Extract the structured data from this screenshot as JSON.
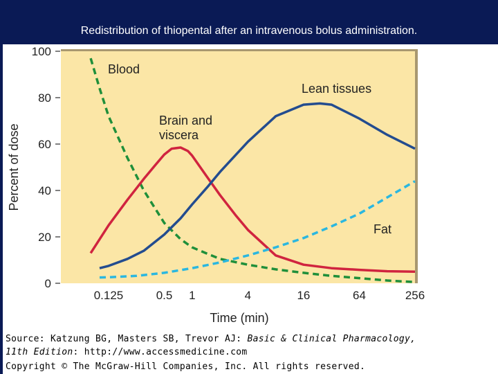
{
  "slide": {
    "title": "Redistribution of thiopental after an intravenous bolus administration."
  },
  "source": {
    "line1_prefix": "Source: Katzung BG, Masters SB, Trevor AJ: ",
    "line1_title": "Basic & Clinical Pharmacology,",
    "line2_edition": "11th Edition",
    "line2_rest": ": http://www.accessmedicine.com",
    "line3": "Copyright © The McGraw-Hill Companies, Inc. All rights reserved."
  },
  "colors": {
    "background": "#0a1a55",
    "plot_area": "#fbe6a6",
    "plot_border": "#a89870",
    "blood": "#1f8f3a",
    "brain": "#d0243f",
    "lean": "#234c8f",
    "fat": "#2ab7e0"
  },
  "chart_data": {
    "type": "line",
    "xlabel": "Time (min)",
    "ylabel": "Percent of dose",
    "x_scale": "log2",
    "x_ticks": [
      0.125,
      0.5,
      1,
      4,
      16,
      64,
      256
    ],
    "x_tick_labels": [
      "0.125",
      "0.5",
      "1",
      "4",
      "16",
      "64",
      "256"
    ],
    "ylim": [
      0,
      100
    ],
    "y_ticks": [
      0,
      20,
      40,
      60,
      80,
      100
    ],
    "y_tick_labels": [
      "0",
      "20",
      "40",
      "60",
      "80",
      "100"
    ],
    "grid": false,
    "series": [
      {
        "name": "Blood",
        "label_lines": [
          "Blood"
        ],
        "color_key": "blood",
        "style": "dashed",
        "x": [
          0.08,
          0.1,
          0.125,
          0.2,
          0.3,
          0.5,
          0.75,
          1,
          1.5,
          2,
          4,
          8,
          16,
          32,
          64,
          128,
          256
        ],
        "y": [
          97,
          84,
          72,
          54,
          40,
          26,
          19,
          15.5,
          12.5,
          10.5,
          8,
          6,
          4.5,
          3.2,
          2.2,
          1.2,
          0.5
        ]
      },
      {
        "name": "Brain and viscera",
        "label_lines": [
          "Brain and",
          "viscera"
        ],
        "color_key": "brain",
        "style": "solid",
        "x": [
          0.08,
          0.125,
          0.2,
          0.3,
          0.4,
          0.5,
          0.6,
          0.75,
          0.9,
          1,
          1.5,
          2,
          3,
          4,
          8,
          16,
          32,
          64,
          128,
          256
        ],
        "y": [
          13,
          25,
          36,
          45,
          51,
          55.5,
          58,
          58.5,
          57,
          55,
          45,
          38,
          29,
          23,
          12,
          8,
          6.5,
          5.8,
          5.2,
          5
        ]
      },
      {
        "name": "Lean tissues",
        "label_lines": [
          "Lean tissues"
        ],
        "color_key": "lean",
        "style": "solid",
        "x": [
          0.1,
          0.125,
          0.2,
          0.3,
          0.5,
          0.75,
          1,
          1.5,
          2,
          4,
          8,
          16,
          24,
          32,
          64,
          128,
          256
        ],
        "y": [
          6.5,
          7.5,
          10.5,
          14,
          21,
          28,
          34,
          42,
          48,
          61,
          72,
          77,
          77.5,
          77,
          71,
          64,
          58
        ]
      },
      {
        "name": "Fat",
        "label_lines": [
          "Fat"
        ],
        "color_key": "fat",
        "style": "dashed",
        "x": [
          0.1,
          0.125,
          0.25,
          0.5,
          1,
          2,
          4,
          8,
          16,
          32,
          64,
          128,
          256
        ],
        "y": [
          2.5,
          2.6,
          3.2,
          4.5,
          6.5,
          9,
          12,
          15.5,
          19.5,
          24.5,
          30,
          37,
          44
        ]
      }
    ]
  }
}
